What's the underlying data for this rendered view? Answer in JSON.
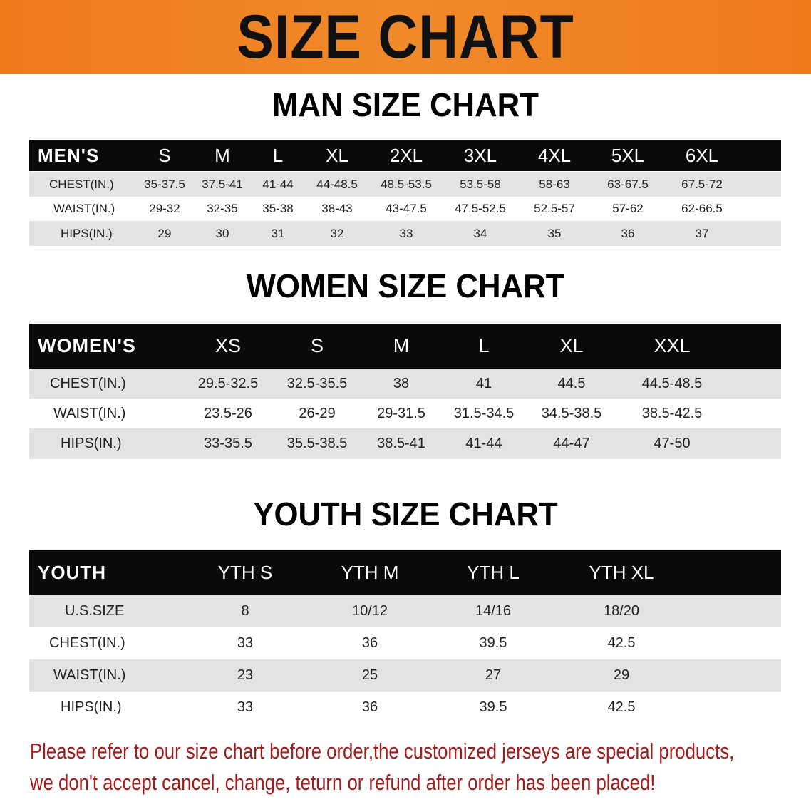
{
  "banner": {
    "title": "SIZE CHART",
    "color": "#ee7a1c"
  },
  "men": {
    "title": "MAN SIZE CHART",
    "header": [
      "MEN'S",
      "S",
      "M",
      "L",
      "XL",
      "2XL",
      "3XL",
      "4XL",
      "5XL",
      "6XL"
    ],
    "rows": [
      [
        "CHEST(IN.)",
        "35-37.5",
        "37.5-41",
        "41-44",
        "44-48.5",
        "48.5-53.5",
        "53.5-58",
        "58-63",
        "63-67.5",
        "67.5-72"
      ],
      [
        "WAIST(IN.)",
        "29-32",
        "32-35",
        "35-38",
        "38-43",
        "43-47.5",
        "47.5-52.5",
        "52.5-57",
        "57-62",
        "62-66.5"
      ],
      [
        "HIPS(IN.)",
        "29",
        "30",
        "31",
        "32",
        "33",
        "34",
        "35",
        "36",
        "37"
      ]
    ]
  },
  "women": {
    "title": "WOMEN SIZE CHART",
    "header": [
      "WOMEN'S",
      "XS",
      "S",
      "M",
      "L",
      "XL",
      "XXL"
    ],
    "rows": [
      [
        "CHEST(IN.)",
        "29.5-32.5",
        "32.5-35.5",
        "38",
        "41",
        "44.5",
        "44.5-48.5"
      ],
      [
        "WAIST(IN.)",
        "23.5-26",
        "26-29",
        "29-31.5",
        "31.5-34.5",
        "34.5-38.5",
        "38.5-42.5"
      ],
      [
        "HIPS(IN.)",
        "33-35.5",
        "35.5-38.5",
        "38.5-41",
        "41-44",
        "44-47",
        "47-50"
      ]
    ]
  },
  "youth": {
    "title": "YOUTH SIZE CHART",
    "header": [
      "YOUTH",
      "YTH S",
      "YTH M",
      "YTH L",
      "YTH XL"
    ],
    "rows": [
      [
        "U.S.SIZE",
        "8",
        "10/12",
        "14/16",
        "18/20"
      ],
      [
        "CHEST(IN.)",
        "33",
        "36",
        "39.5",
        "42.5"
      ],
      [
        "WAIST(IN.)",
        "23",
        "25",
        "27",
        "29"
      ],
      [
        "HIPS(IN.)",
        "33",
        "36",
        "39.5",
        "42.5"
      ]
    ]
  },
  "note": {
    "line1": "Please refer to our size chart before order,the customized jerseys are special products,",
    "line2": "we don't accept cancel, change, teturn or refund after order has been placed!",
    "color": "#a51c1c"
  }
}
